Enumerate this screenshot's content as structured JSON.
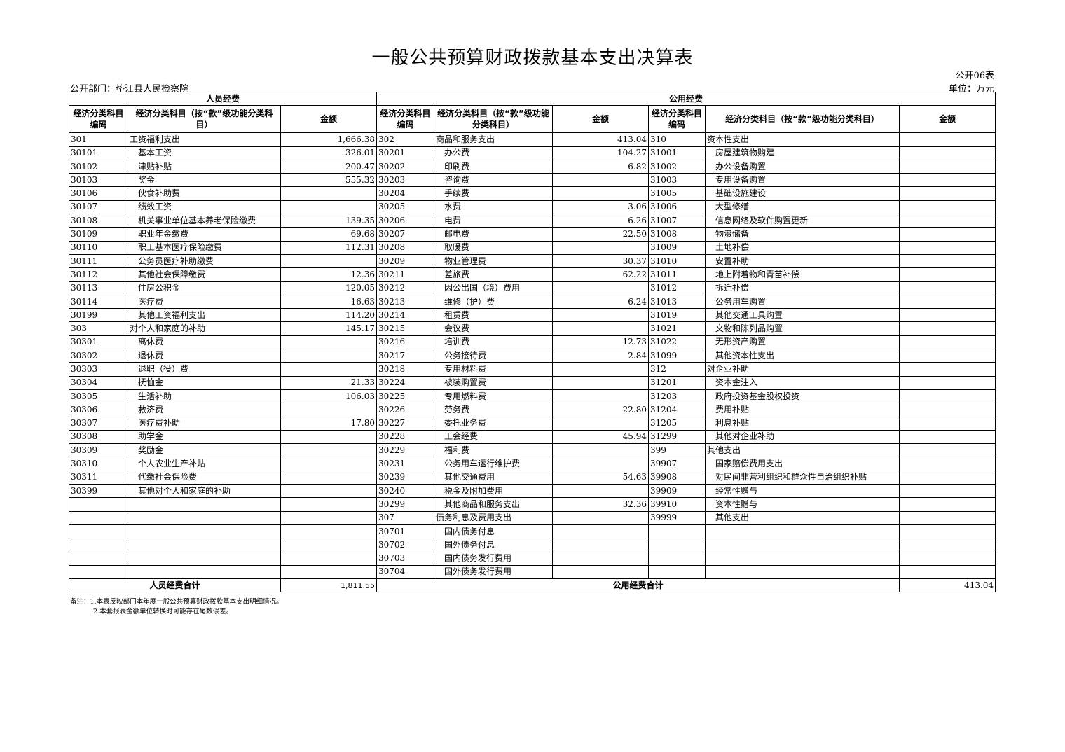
{
  "title": "一般公共预算财政拨款基本支出决算表",
  "table_tag": "公开06表",
  "unit": "单位：万元",
  "department": "公开部门：垫江县人民检察院",
  "groups": {
    "personnel": "人员经费",
    "public": "公用经费"
  },
  "headers": {
    "code": "经济分类科目编码",
    "name_left": "经济分类科目（按“款”级功能分类科目）",
    "name_mid": "经济分类科目（按“款”级功能分类科目）",
    "name_right": "经济分类科目（按“款”级功能分类科目）",
    "amount": "金额"
  },
  "personnel_rows": [
    {
      "code": "301",
      "name": "工资福利支出",
      "amount": "1,666.38"
    },
    {
      "code": "30101",
      "name": "基本工资",
      "amount": "326.01"
    },
    {
      "code": "30102",
      "name": "津贴补贴",
      "amount": "200.47"
    },
    {
      "code": "30103",
      "name": "奖金",
      "amount": "555.32"
    },
    {
      "code": "30106",
      "name": "伙食补助费",
      "amount": ""
    },
    {
      "code": "30107",
      "name": "绩效工资",
      "amount": ""
    },
    {
      "code": "30108",
      "name": "机关事业单位基本养老保险缴费",
      "amount": "139.35"
    },
    {
      "code": "30109",
      "name": "职业年金缴费",
      "amount": "69.68"
    },
    {
      "code": "30110",
      "name": "职工基本医疗保险缴费",
      "amount": "112.31"
    },
    {
      "code": "30111",
      "name": "公务员医疗补助缴费",
      "amount": ""
    },
    {
      "code": "30112",
      "name": "其他社会保障缴费",
      "amount": "12.36"
    },
    {
      "code": "30113",
      "name": "住房公积金",
      "amount": "120.05"
    },
    {
      "code": "30114",
      "name": "医疗费",
      "amount": "16.63"
    },
    {
      "code": "30199",
      "name": "其他工资福利支出",
      "amount": "114.20"
    },
    {
      "code": "303",
      "name": "对个人和家庭的补助",
      "amount": "145.17"
    },
    {
      "code": "30301",
      "name": "离休费",
      "amount": ""
    },
    {
      "code": "30302",
      "name": "退休费",
      "amount": ""
    },
    {
      "code": "30303",
      "name": "退职（役）费",
      "amount": ""
    },
    {
      "code": "30304",
      "name": "抚恤金",
      "amount": "21.33"
    },
    {
      "code": "30305",
      "name": "生活补助",
      "amount": "106.03"
    },
    {
      "code": "30306",
      "name": "救济费",
      "amount": ""
    },
    {
      "code": "30307",
      "name": "医疗费补助",
      "amount": "17.80"
    },
    {
      "code": "30308",
      "name": "助学金",
      "amount": ""
    },
    {
      "code": "30309",
      "name": "奖励金",
      "amount": ""
    },
    {
      "code": "30310",
      "name": "个人农业生产补贴",
      "amount": ""
    },
    {
      "code": "30311",
      "name": "代缴社会保险费",
      "amount": ""
    },
    {
      "code": "30399",
      "name": "其他对个人和家庭的补助",
      "amount": ""
    }
  ],
  "public_rows_mid": [
    {
      "code": "302",
      "name": "商品和服务支出",
      "amount": "413.04"
    },
    {
      "code": "30201",
      "name": "办公费",
      "amount": "104.27"
    },
    {
      "code": "30202",
      "name": "印刷费",
      "amount": "6.82"
    },
    {
      "code": "30203",
      "name": "咨询费",
      "amount": ""
    },
    {
      "code": "30204",
      "name": "手续费",
      "amount": ""
    },
    {
      "code": "30205",
      "name": "水费",
      "amount": "3.06"
    },
    {
      "code": "30206",
      "name": "电费",
      "amount": "6.26"
    },
    {
      "code": "30207",
      "name": "邮电费",
      "amount": "22.50"
    },
    {
      "code": "30208",
      "name": "取暖费",
      "amount": ""
    },
    {
      "code": "30209",
      "name": "物业管理费",
      "amount": "30.37"
    },
    {
      "code": "30211",
      "name": "差旅费",
      "amount": "62.22"
    },
    {
      "code": "30212",
      "name": "因公出国（境）费用",
      "amount": ""
    },
    {
      "code": "30213",
      "name": "维修（护）费",
      "amount": "6.24"
    },
    {
      "code": "30214",
      "name": "租赁费",
      "amount": ""
    },
    {
      "code": "30215",
      "name": "会议费",
      "amount": ""
    },
    {
      "code": "30216",
      "name": "培训费",
      "amount": "12.73"
    },
    {
      "code": "30217",
      "name": "公务接待费",
      "amount": "2.84"
    },
    {
      "code": "30218",
      "name": "专用材料费",
      "amount": ""
    },
    {
      "code": "30224",
      "name": "被装购置费",
      "amount": ""
    },
    {
      "code": "30225",
      "name": "专用燃料费",
      "amount": ""
    },
    {
      "code": "30226",
      "name": "劳务费",
      "amount": "22.80"
    },
    {
      "code": "30227",
      "name": "委托业务费",
      "amount": ""
    },
    {
      "code": "30228",
      "name": "工会经费",
      "amount": "45.94"
    },
    {
      "code": "30229",
      "name": "福利费",
      "amount": ""
    },
    {
      "code": "30231",
      "name": "公务用车运行维护费",
      "amount": ""
    },
    {
      "code": "30239",
      "name": "其他交通费用",
      "amount": "54.63"
    },
    {
      "code": "30240",
      "name": "税金及附加费用",
      "amount": ""
    },
    {
      "code": "30299",
      "name": "其他商品和服务支出",
      "amount": "32.36"
    },
    {
      "code": "307",
      "name": "债务利息及费用支出",
      "amount": ""
    },
    {
      "code": "30701",
      "name": "国内债务付息",
      "amount": ""
    },
    {
      "code": "30702",
      "name": "国外债务付息",
      "amount": ""
    },
    {
      "code": "30703",
      "name": "国内债务发行费用",
      "amount": ""
    },
    {
      "code": "30704",
      "name": "国外债务发行费用",
      "amount": ""
    }
  ],
  "public_rows_right": [
    {
      "code": "310",
      "name": "资本性支出",
      "amount": ""
    },
    {
      "code": "31001",
      "name": "房屋建筑物购建",
      "amount": ""
    },
    {
      "code": "31002",
      "name": "办公设备购置",
      "amount": ""
    },
    {
      "code": "31003",
      "name": "专用设备购置",
      "amount": ""
    },
    {
      "code": "31005",
      "name": "基础设施建设",
      "amount": ""
    },
    {
      "code": "31006",
      "name": "大型修缮",
      "amount": ""
    },
    {
      "code": "31007",
      "name": "信息网络及软件购置更新",
      "amount": ""
    },
    {
      "code": "31008",
      "name": "物资储备",
      "amount": ""
    },
    {
      "code": "31009",
      "name": "土地补偿",
      "amount": ""
    },
    {
      "code": "31010",
      "name": "安置补助",
      "amount": ""
    },
    {
      "code": "31011",
      "name": "地上附着物和青苗补偿",
      "amount": ""
    },
    {
      "code": "31012",
      "name": "拆迁补偿",
      "amount": ""
    },
    {
      "code": "31013",
      "name": "公务用车购置",
      "amount": ""
    },
    {
      "code": "31019",
      "name": "其他交通工具购置",
      "amount": ""
    },
    {
      "code": "31021",
      "name": "文物和陈列品购置",
      "amount": ""
    },
    {
      "code": "31022",
      "name": "无形资产购置",
      "amount": ""
    },
    {
      "code": "31099",
      "name": "其他资本性支出",
      "amount": ""
    },
    {
      "code": "312",
      "name": "对企业补助",
      "amount": ""
    },
    {
      "code": "31201",
      "name": "资本金注入",
      "amount": ""
    },
    {
      "code": "31203",
      "name": "政府投资基金股权投资",
      "amount": ""
    },
    {
      "code": "31204",
      "name": "费用补贴",
      "amount": ""
    },
    {
      "code": "31205",
      "name": "利息补贴",
      "amount": ""
    },
    {
      "code": "31299",
      "name": "其他对企业补助",
      "amount": ""
    },
    {
      "code": "399",
      "name": "其他支出",
      "amount": ""
    },
    {
      "code": "39907",
      "name": "国家赔偿费用支出",
      "amount": ""
    },
    {
      "code": "39908",
      "name": "对民间非营利组织和群众性自治组织补贴",
      "amount": ""
    },
    {
      "code": "39909",
      "name": "经常性赠与",
      "amount": ""
    },
    {
      "code": "39910",
      "name": "资本性赠与",
      "amount": ""
    },
    {
      "code": "39999",
      "name": "其他支出",
      "amount": ""
    }
  ],
  "totals": {
    "personnel_label": "人员经费合计",
    "personnel_amount": "1,811.55",
    "public_label": "公用经费合计",
    "public_amount": "413.04"
  },
  "notes": [
    "备注：1.本表反映部门本年度一般公共预算财政拨款基本支出明细情况。",
    "2.本套报表金额单位转换时可能存在尾数误差。"
  ]
}
